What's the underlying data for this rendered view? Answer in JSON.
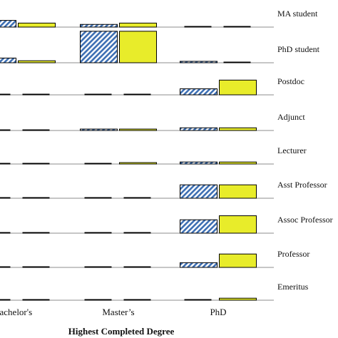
{
  "chart_data": {
    "type": "bar",
    "xlabel": "Highest Completed Degree",
    "categories": [
      "Bachelor's",
      "Master’s",
      "PhD"
    ],
    "rows": [
      "MA student",
      "PhD student",
      "Postdoc",
      "Adjunct",
      "Lecturer",
      "Asst Professor",
      "Assoc Professor",
      "Professor",
      "Emeritus"
    ],
    "series": [
      {
        "pattern": "hatched",
        "color": "#4f7dbd",
        "values": [
          [
            10,
            4,
            0
          ],
          [
            7,
            47,
            2
          ],
          [
            0,
            0,
            9
          ],
          [
            0,
            2,
            4
          ],
          [
            0,
            0,
            3
          ],
          [
            0,
            0,
            20
          ],
          [
            0,
            0,
            20
          ],
          [
            0,
            0,
            7
          ],
          [
            0,
            0,
            0
          ]
        ]
      },
      {
        "pattern": "solid",
        "color": "#e8ec2a",
        "values": [
          [
            6,
            6,
            0
          ],
          [
            3,
            47,
            0
          ],
          [
            0,
            0,
            22
          ],
          [
            0,
            2,
            4
          ],
          [
            0,
            2,
            3
          ],
          [
            0,
            0,
            20
          ],
          [
            0,
            0,
            26
          ],
          [
            0,
            0,
            20
          ],
          [
            0,
            0,
            3
          ]
        ]
      }
    ],
    "row_max": 50,
    "grid": false
  }
}
